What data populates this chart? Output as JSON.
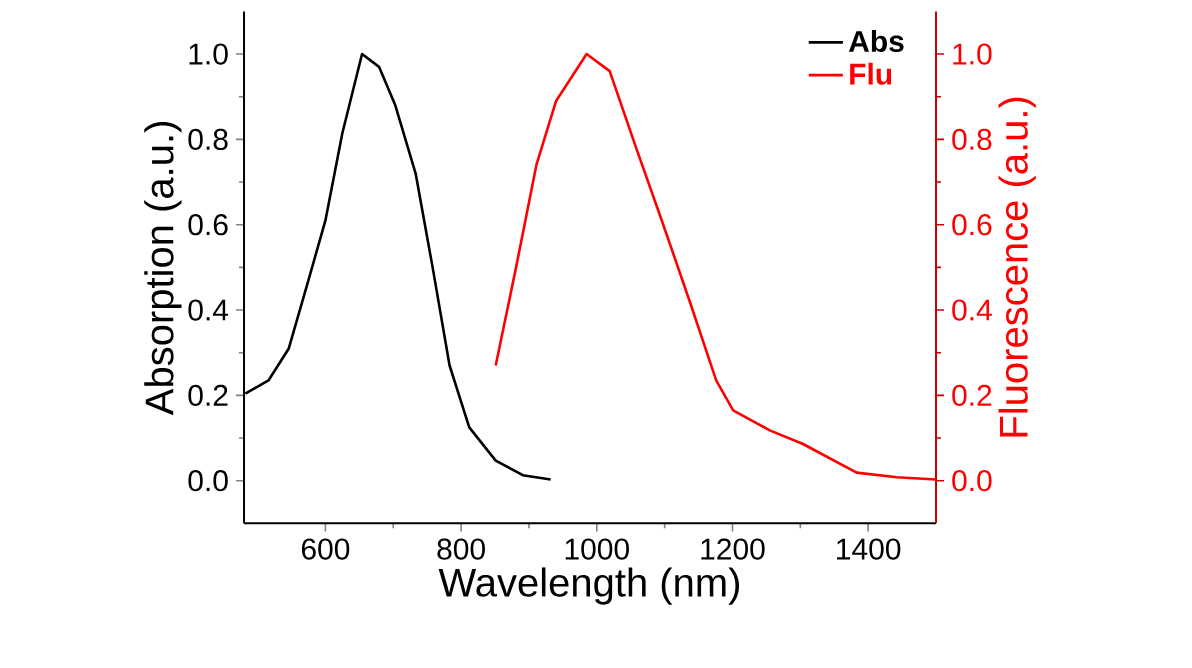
{
  "chart_data": {
    "type": "line",
    "xlabel": "Wavelength (nm)",
    "ylabel": "Absorption (a.u.)",
    "y2label": "Fluorescence (a.u.)",
    "xlim": [
      480,
      1500
    ],
    "xticks": [
      600,
      800,
      1000,
      1200,
      1400
    ],
    "ylim": [
      -0.1,
      1.1
    ],
    "yticks": [
      {
        "value": 0,
        "label": "0.0"
      },
      {
        "value": 0.2,
        "label": "0.2"
      },
      {
        "value": 0.4,
        "label": "0.4"
      },
      {
        "value": 0.6,
        "label": "0.6"
      },
      {
        "value": 0.8,
        "label": "0.8"
      },
      {
        "value": 1,
        "label": "1.0"
      }
    ],
    "y2lim": [
      -0.1,
      1.1
    ],
    "y2ticks": [
      {
        "value": 0,
        "label": "0.0"
      },
      {
        "value": 0.2,
        "label": "0.2"
      },
      {
        "value": 0.4,
        "label": "0.4"
      },
      {
        "value": 0.6,
        "label": "0.6"
      },
      {
        "value": 0.8,
        "label": "0.8"
      },
      {
        "value": 1,
        "label": "1.0"
      }
    ],
    "legend": "top right",
    "grid": false,
    "marker": "none",
    "series": [
      {
        "name": "**Abs**",
        "color": "#000000",
        "x": [
          482,
          516,
          546,
          575,
          600,
          625,
          654,
          679,
          703,
          733,
          758,
          783,
          812,
          851,
          891,
          932
        ],
        "values": [
          0.204,
          0.235,
          0.31,
          0.47,
          0.61,
          0.815,
          1.0,
          0.97,
          0.88,
          0.72,
          0.5,
          0.27,
          0.125,
          0.047,
          0.013,
          0.003
        ]
      },
      {
        "name": "**Flu**",
        "color": "#ff0000",
        "axis": "y2",
        "x": [
          851,
          881,
          911,
          940,
          985,
          1019,
          1058,
          1098,
          1137,
          1176,
          1201,
          1255,
          1304,
          1383,
          1442,
          1500
        ],
        "values": [
          0.27,
          0.5,
          0.74,
          0.89,
          1.0,
          0.96,
          0.78,
          0.6,
          0.42,
          0.235,
          0.165,
          0.118,
          0.086,
          0.019,
          0.008,
          0.003
        ]
      }
    ]
  }
}
